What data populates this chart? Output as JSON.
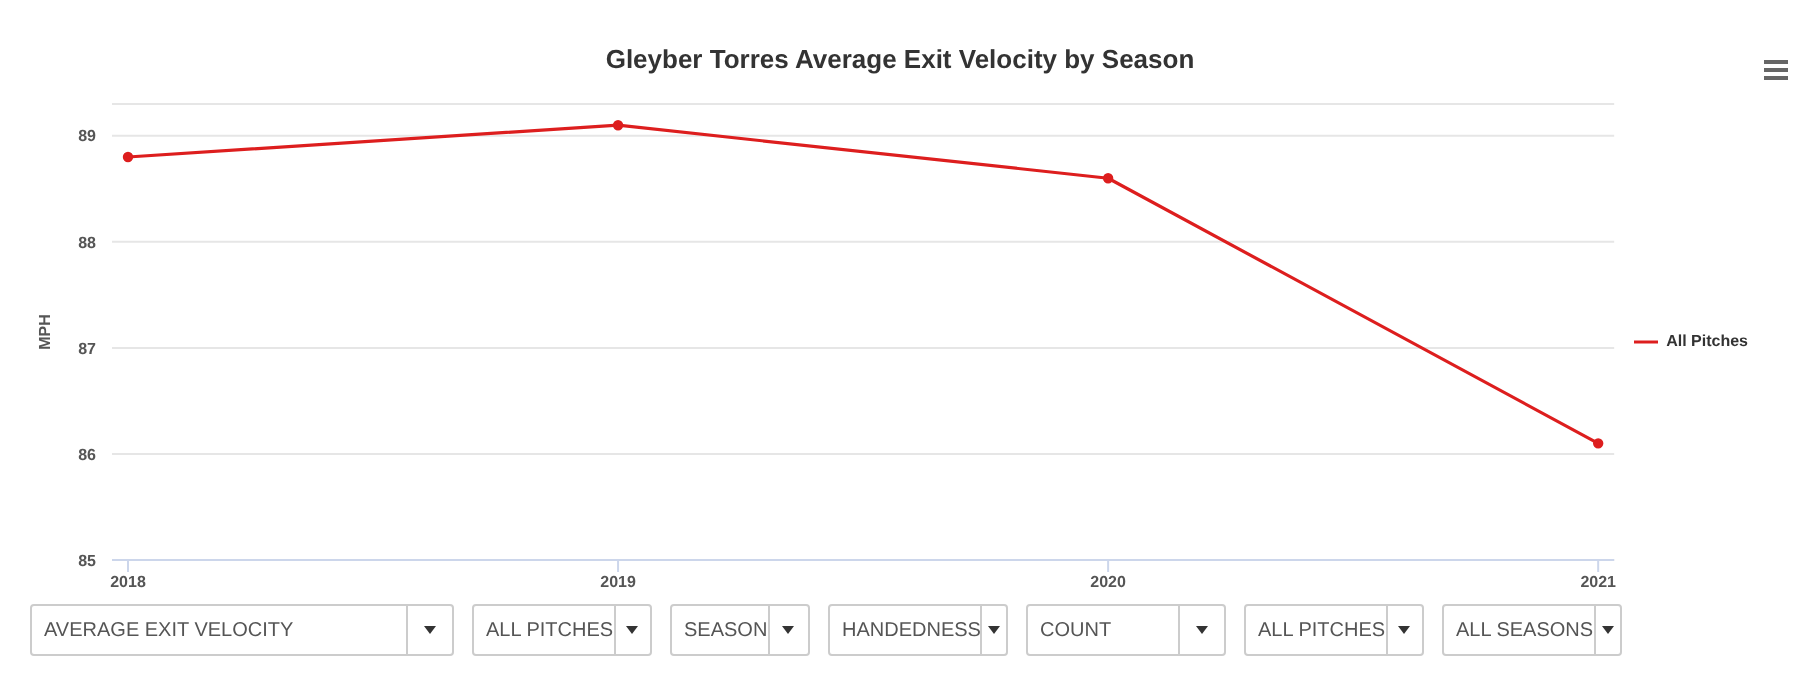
{
  "chart_data": {
    "type": "line",
    "title": "Gleyber Torres Average Exit Velocity by Season",
    "ylabel": "MPH",
    "categories": [
      "2018",
      "2019",
      "2020",
      "2021"
    ],
    "series": [
      {
        "name": "All Pitches",
        "color": "#dd1e1e",
        "values": [
          88.8,
          89.1,
          88.6,
          86.1
        ]
      }
    ],
    "ylim": [
      85,
      89.3
    ],
    "yticks": [
      85,
      86,
      87,
      88,
      89
    ],
    "grid": "y",
    "legend": "right",
    "marker": "circle",
    "line_style": "solid",
    "annotations": [
      "AVERAGE EXIT VELOCITY",
      "ALL PITCHES",
      "SEASON",
      "HANDEDNESS",
      "COUNT",
      "ALL PITCHES",
      "ALL SEASONS"
    ]
  }
}
